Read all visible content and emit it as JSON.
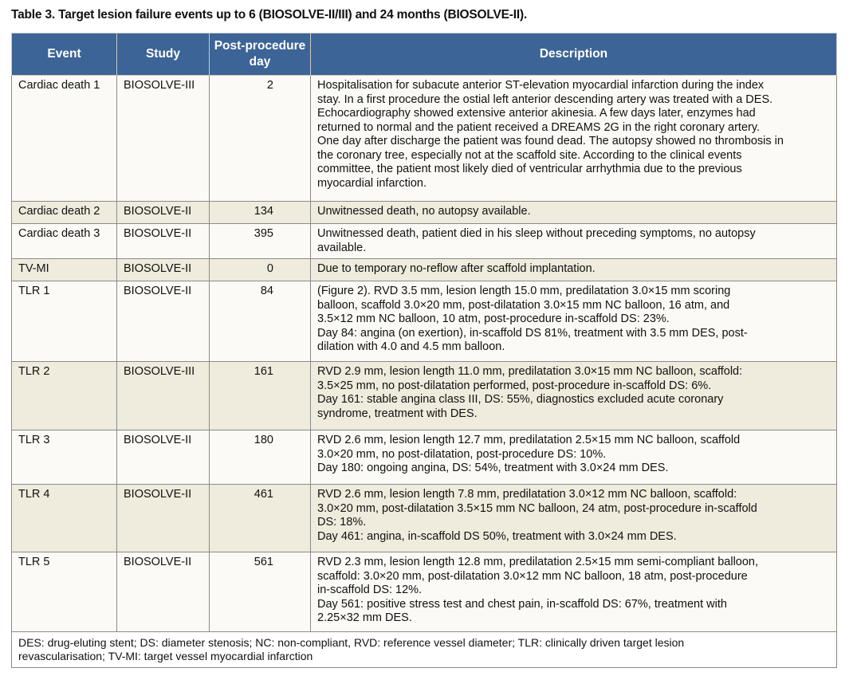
{
  "title": "Table 3. Target lesion failure events up to 6 (BIOSOLVE-II/III) and 24 months (BIOSOLVE-II).",
  "headers": [
    "Event",
    "Study",
    "Post-procedure\nday",
    "Description"
  ],
  "rows": [
    {
      "event": "Cardiac death 1",
      "study": "BIOSOLVE-III",
      "day": "2",
      "description": "Hospitalisation for subacute anterior ST-elevation myocardial infarction during the index\nstay. In a first procedure the ostial left anterior descending artery was treated with a DES.\nEchocardiography showed extensive anterior akinesia. A few days later, enzymes had\nreturned to normal and the patient received a DREAMS 2G in the right coronary artery.\nOne day after discharge the patient was found dead. The autopsy showed no thrombosis in\nthe coronary tree, especially not at the scaffold site. According to the clinical events\ncommittee, the patient most likely died of ventricular arrhythmia due to the previous\nmyocardial infarction."
    },
    {
      "event": "Cardiac death 2",
      "study": "BIOSOLVE-II",
      "day": "134",
      "description": "Unwitnessed death, no autopsy available."
    },
    {
      "event": "Cardiac death 3",
      "study": "BIOSOLVE-II",
      "day": "395",
      "description": "Unwitnessed death, patient died in his sleep without preceding symptoms, no autopsy\navailable."
    },
    {
      "event": "TV-MI",
      "study": "BIOSOLVE-II",
      "day": "0",
      "description": "Due to temporary no-reflow after scaffold implantation."
    },
    {
      "event": "TLR 1",
      "study": "BIOSOLVE-II",
      "day": "84",
      "description": "(Figure 2). RVD 3.5 mm, lesion length 15.0 mm, predilatation 3.0×15 mm scoring\nballoon, scaffold 3.0×20 mm, post-dilatation 3.0×15 mm NC balloon, 16 atm, and\n3.5×12 mm NC balloon, 10 atm, post-procedure in-scaffold DS: 23%.\nDay 84: angina (on exertion), in-scaffold DS 81%, treatment with 3.5 mm DES, post-\ndilation with 4.0 and 4.5 mm balloon."
    },
    {
      "event": "TLR 2",
      "study": "BIOSOLVE-III",
      "day": "161",
      "description": "RVD 2.9 mm, lesion length 11.0 mm, predilatation 3.0×15 mm NC balloon, scaffold:\n3.5×25 mm, no post-dilatation performed, post-procedure in-scaffold DS: 6%.\nDay 161: stable angina class III, DS: 55%, diagnostics excluded acute coronary\nsyndrome, treatment with DES."
    },
    {
      "event": "TLR 3",
      "study": "BIOSOLVE-II",
      "day": "180",
      "description": "RVD 2.6 mm, lesion length 12.7 mm, predilatation 2.5×15 mm NC balloon, scaffold\n3.0×20 mm, no post-dilatation, post-procedure DS: 10%.\nDay 180: ongoing angina, DS: 54%, treatment with 3.0×24 mm DES."
    },
    {
      "event": "TLR 4",
      "study": "BIOSOLVE-II",
      "day": "461",
      "description": "RVD 2.6 mm, lesion length 7.8 mm, predilatation 3.0×12 mm NC balloon, scaffold:\n3.0×20 mm, post-dilatation 3.5×15 mm NC balloon, 24 atm, post-procedure in-scaffold\nDS: 18%.\nDay 461: angina, in-scaffold DS 50%, treatment with 3.0×24 mm DES."
    },
    {
      "event": "TLR 5",
      "study": "BIOSOLVE-II",
      "day": "561",
      "description": "RVD 2.3 mm, lesion length 12.8 mm, predilatation 2.5×15 mm semi-compliant balloon,\nscaffold: 3.0×20 mm, post-dilatation 3.0×12 mm NC balloon, 18 atm, post-procedure\nin-scaffold DS: 12%.\nDay 561: positive stress test and chest pain, in-scaffold DS: 67%, treatment with\n2.25×32 mm DES."
    }
  ],
  "footnote": "DES: drug-eluting stent; DS: diameter stenosis; NC: non-compliant, RVD: reference vessel diameter; TLR: clinically driven target lesion\nrevascularisation; TV-MI: target vessel myocardial infarction",
  "colors": {
    "header": "#3c6496",
    "row_light": "#fbfaf6",
    "row_shaded": "#efebdd"
  }
}
